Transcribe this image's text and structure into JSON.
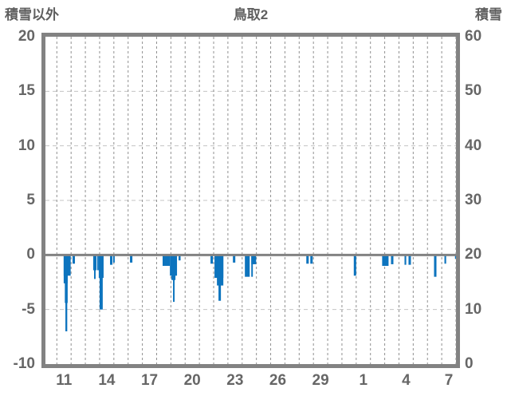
{
  "header": {
    "left_axis_title": "積雪以外",
    "title": "鳥取2",
    "right_axis_title": "積雪"
  },
  "chart_data": {
    "type": "bar",
    "title": "鳥取2",
    "legend": "none",
    "grid": "dashed daily vertical lines, dashed horizontal lines, solid zero line",
    "left_axis": {
      "label": "積雪以外",
      "ticks": [
        20,
        15,
        10,
        5,
        0,
        -5,
        -10
      ],
      "range": [
        -10,
        20
      ]
    },
    "right_axis": {
      "label": "積雪",
      "ticks": [
        60,
        50,
        40,
        30,
        20,
        10,
        0
      ],
      "range": [
        0,
        60
      ]
    },
    "x_axis": {
      "tick_labels": [
        "11",
        "14",
        "17",
        "20",
        "23",
        "26",
        "29",
        "1",
        "4",
        "7"
      ],
      "tick_positions_days": [
        0.5,
        3.5,
        6.5,
        9.5,
        12.5,
        15.5,
        18.5,
        21.5,
        24.5,
        27.5
      ],
      "range_days": [
        -0.8,
        28.0
      ],
      "gridline_every_days": 1,
      "note": "d,w in day units from start of day-11 cell; v in left-axis units"
    },
    "series": [
      {
        "name": "積雪以外",
        "color": "#0d74be",
        "bars": [
          {
            "d": 0.48,
            "w": 0.49,
            "v": -1.9
          },
          {
            "d": 0.48,
            "w": 0.28,
            "v": -2.6
          },
          {
            "d": 0.56,
            "w": 0.2,
            "v": -4.4
          },
          {
            "d": 0.6,
            "w": 0.13,
            "v": -7.0
          },
          {
            "d": 1.1,
            "w": 0.17,
            "v": -0.8
          },
          {
            "d": 2.55,
            "w": 0.23,
            "v": -1.4
          },
          {
            "d": 2.61,
            "w": 0.11,
            "v": -2.2
          },
          {
            "d": 2.83,
            "w": 0.11,
            "v": -1.4
          },
          {
            "d": 2.94,
            "w": 0.34,
            "v": -2.1
          },
          {
            "d": 3.0,
            "w": 0.22,
            "v": -5.0
          },
          {
            "d": 3.73,
            "w": 0.17,
            "v": -0.9
          },
          {
            "d": 3.95,
            "w": 0.11,
            "v": -0.7
          },
          {
            "d": 5.13,
            "w": 0.17,
            "v": -0.7
          },
          {
            "d": 7.42,
            "w": 0.51,
            "v": -1.0
          },
          {
            "d": 7.93,
            "w": 0.5,
            "v": -1.9
          },
          {
            "d": 8.04,
            "w": 0.28,
            "v": -2.3
          },
          {
            "d": 8.15,
            "w": 0.11,
            "v": -4.3
          },
          {
            "d": 8.54,
            "w": 0.14,
            "v": -0.5
          },
          {
            "d": 10.78,
            "w": 0.17,
            "v": -0.8
          },
          {
            "d": 11.06,
            "w": 0.62,
            "v": -2.1
          },
          {
            "d": 11.23,
            "w": 0.45,
            "v": -2.8
          },
          {
            "d": 11.34,
            "w": 0.17,
            "v": -4.2
          },
          {
            "d": 12.35,
            "w": 0.17,
            "v": -0.7
          },
          {
            "d": 13.19,
            "w": 0.34,
            "v": -2.0
          },
          {
            "d": 13.64,
            "w": 0.34,
            "v": -0.85
          },
          {
            "d": 13.64,
            "w": 0.11,
            "v": -2.0
          },
          {
            "d": 17.5,
            "w": 0.17,
            "v": -0.8
          },
          {
            "d": 17.78,
            "w": 0.17,
            "v": -0.8
          },
          {
            "d": 20.83,
            "w": 0.17,
            "v": -1.9
          },
          {
            "d": 22.82,
            "w": 0.45,
            "v": -1.0
          },
          {
            "d": 23.44,
            "w": 0.17,
            "v": -0.85
          },
          {
            "d": 24.39,
            "w": 0.12,
            "v": -0.9
          },
          {
            "d": 24.67,
            "w": 0.17,
            "v": -0.9
          },
          {
            "d": 26.46,
            "w": 0.17,
            "v": -2.0
          },
          {
            "d": 27.19,
            "w": 0.12,
            "v": -0.8
          },
          {
            "d": 27.93,
            "w": 0.07,
            "v": -0.35
          }
        ]
      }
    ],
    "colors": {
      "bar": "#0d74be",
      "frame": "#828282",
      "zero_line": "#828282",
      "vertical_grid": "#909090",
      "horizontal_grid": "#c4c4c4",
      "text": "#666666",
      "background": "#ffffff"
    }
  }
}
